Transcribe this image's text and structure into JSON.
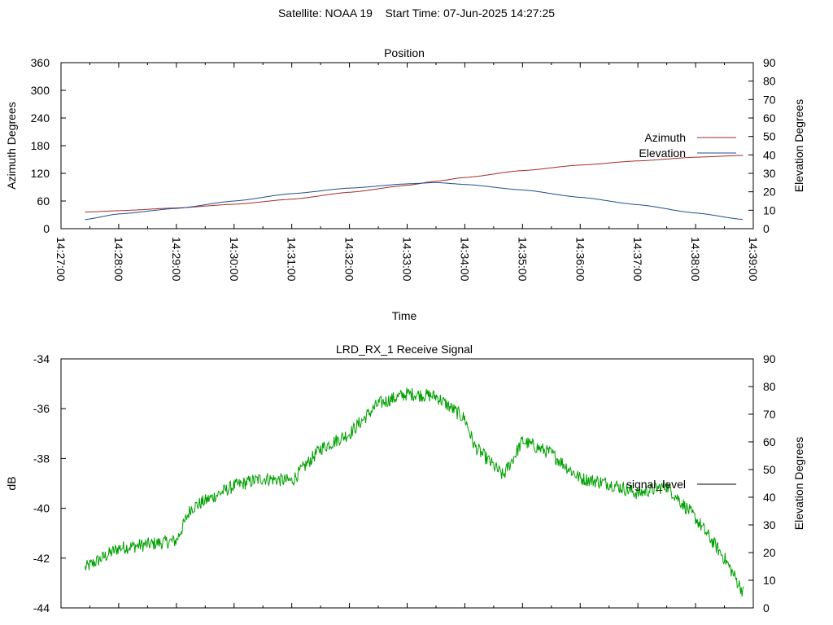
{
  "page_title": "Satellite: NOAA 19    Start Time: 07-Jun-2025 14:27:25",
  "chart_data": [
    {
      "type": "line",
      "title": "Position",
      "xlabel": "Time",
      "ylabel": "Azimuth Degrees",
      "y2label": "Elevation Degrees",
      "x_ticks": [
        "14:27:00",
        "14:28:00",
        "14:29:00",
        "14:30:00",
        "14:31:00",
        "14:32:00",
        "14:33:00",
        "14:34:00",
        "14:35:00",
        "14:36:00",
        "14:37:00",
        "14:38:00",
        "14:39:00"
      ],
      "xlim": [
        "14:27:00",
        "14:39:00"
      ],
      "ylim": [
        0,
        360
      ],
      "y_ticks": [
        0,
        60,
        120,
        180,
        240,
        300,
        360
      ],
      "y2lim": [
        0,
        90
      ],
      "y2_ticks": [
        0,
        10,
        20,
        30,
        40,
        50,
        60,
        70,
        80,
        90
      ],
      "legend": "right",
      "grid": false,
      "x": [
        "14:27:25",
        "14:28:00",
        "14:29:00",
        "14:30:00",
        "14:31:00",
        "14:32:00",
        "14:33:00",
        "14:33:30",
        "14:34:00",
        "14:35:00",
        "14:36:00",
        "14:37:00",
        "14:38:00",
        "14:38:50"
      ],
      "series": [
        {
          "name": "Azimuth",
          "axis": "y",
          "color": "#a52a2a",
          "values": [
            36,
            39,
            45,
            53,
            64,
            79,
            94,
            103,
            111,
            126,
            138,
            147,
            155,
            159
          ]
        },
        {
          "name": "Elevation",
          "axis": "y2",
          "color": "#1f4e8c",
          "values": [
            5,
            8,
            11,
            15,
            19,
            22,
            24.3,
            25,
            24,
            21,
            17,
            13,
            8.5,
            5
          ]
        }
      ]
    },
    {
      "type": "line",
      "title": "LRD_RX_1 Receive Signal",
      "ylabel": "dB",
      "y2label": "Elevation Degrees",
      "xlim": [
        "14:27:00",
        "14:39:00"
      ],
      "ylim": [
        -44,
        -34
      ],
      "y_ticks": [
        -44,
        -42,
        -40,
        -38,
        -36,
        -34
      ],
      "y2lim": [
        0,
        90
      ],
      "y2_ticks": [
        0,
        10,
        20,
        30,
        40,
        50,
        60,
        70,
        80,
        90
      ],
      "legend": "right",
      "grid": false,
      "x": [
        "14:27:25",
        "14:28:00",
        "14:29:00",
        "14:29:15",
        "14:30:00",
        "14:30:30",
        "14:31:00",
        "14:31:30",
        "14:32:00",
        "14:32:30",
        "14:33:00",
        "14:33:30",
        "14:34:00",
        "14:34:10",
        "14:34:40",
        "14:35:00",
        "14:35:30",
        "14:36:00",
        "14:36:30",
        "14:37:00",
        "14:37:30",
        "14:38:00",
        "14:38:30",
        "14:38:50"
      ],
      "series": [
        {
          "name": "signal_level",
          "color": "#00a000",
          "values": [
            -42.4,
            -41.6,
            -41.3,
            -40.0,
            -39.1,
            -38.8,
            -38.9,
            -37.6,
            -37.0,
            -35.8,
            -35.4,
            -35.5,
            -36.4,
            -37.5,
            -38.7,
            -37.3,
            -37.8,
            -38.8,
            -39.0,
            -39.4,
            -39.1,
            -40.4,
            -42.0,
            -43.4
          ]
        }
      ]
    }
  ]
}
